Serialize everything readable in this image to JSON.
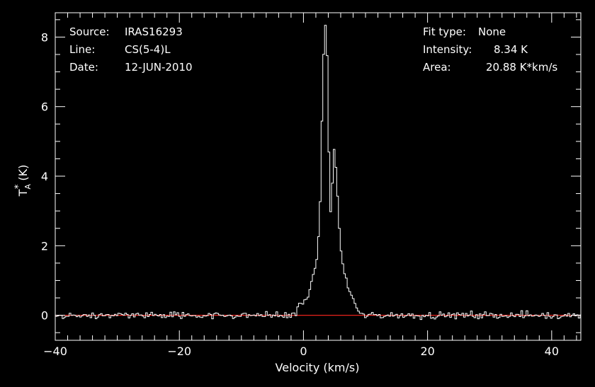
{
  "header_left": [
    {
      "key": "Source:",
      "value": "IRAS16293"
    },
    {
      "key": "Line:",
      "value": "CS(5-4)L"
    },
    {
      "key": "Date:",
      "value": "12-JUN-2010"
    }
  ],
  "header_right": [
    {
      "key": "Fit type:",
      "value": "None"
    },
    {
      "key": "Intensity:",
      "value": "8.34 K"
    },
    {
      "key": "Area:",
      "value": "20.88 K*km/s"
    }
  ],
  "colors": {
    "background": "#000000",
    "spectrum": "#ffffff",
    "baseline": "#e8231c"
  },
  "chart_data": {
    "type": "line",
    "style": "step",
    "xlabel": "Velocity (km/s)",
    "ylabel_base": "T",
    "ylabel_sub": "A",
    "ylabel_sup": "*",
    "ylabel_unit": "(K)",
    "xlim": [
      -40,
      44.7
    ],
    "ylim": [
      -0.72,
      8.7
    ],
    "xticks": [
      -40,
      -20,
      0,
      20,
      40
    ],
    "xtick_labels": [
      "−40",
      "−20",
      "0",
      "20",
      "40"
    ],
    "yticks": [
      0,
      2,
      4,
      6,
      8
    ],
    "ytick_labels": [
      "0",
      "2",
      "4",
      "6",
      "8"
    ],
    "baseline_value": 0,
    "peak_velocity": 3.6,
    "peak_intensity": 8.34,
    "noise_rms": 0.1,
    "channel_width_kms": 0.28,
    "line_profile": [
      {
        "v": -1.0,
        "t": 0.25
      },
      {
        "v": 0.0,
        "t": 0.35
      },
      {
        "v": 0.6,
        "t": 0.55
      },
      {
        "v": 1.2,
        "t": 0.85
      },
      {
        "v": 1.8,
        "t": 1.2
      },
      {
        "v": 2.3,
        "t": 1.9
      },
      {
        "v": 2.7,
        "t": 3.2
      },
      {
        "v": 3.0,
        "t": 5.8
      },
      {
        "v": 3.3,
        "t": 7.7
      },
      {
        "v": 3.6,
        "t": 8.34
      },
      {
        "v": 3.9,
        "t": 7.2
      },
      {
        "v": 4.2,
        "t": 3.4
      },
      {
        "v": 4.5,
        "t": 2.6
      },
      {
        "v": 4.8,
        "t": 4.9
      },
      {
        "v": 5.1,
        "t": 4.6
      },
      {
        "v": 5.5,
        "t": 3.4
      },
      {
        "v": 6.0,
        "t": 1.9
      },
      {
        "v": 6.6,
        "t": 1.2
      },
      {
        "v": 7.2,
        "t": 0.8
      },
      {
        "v": 7.8,
        "t": 0.55
      },
      {
        "v": 8.4,
        "t": 0.3
      },
      {
        "v": 9.0,
        "t": 0.05
      }
    ]
  }
}
